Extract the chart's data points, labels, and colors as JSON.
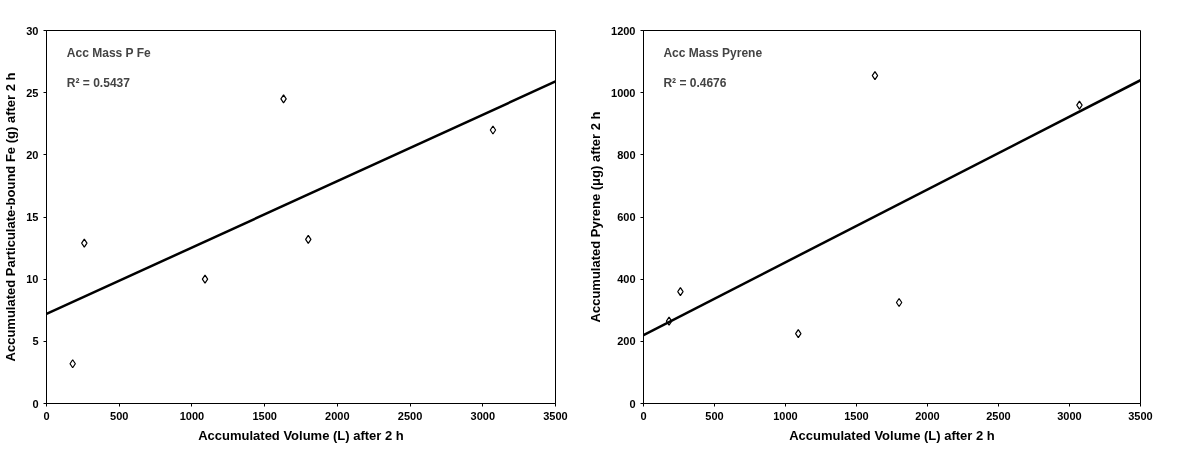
{
  "chart_data": [
    {
      "type": "scatter",
      "xlabel": "Accumulated Volume (L) after 2 h",
      "ylabel": "Accumulated Particulate-bound Fe (g) after 2 h",
      "annotations": [
        "Acc Mass P Fe",
        "R² = 0.5437"
      ],
      "xlim": [
        0,
        3500
      ],
      "xticks": [
        0,
        500,
        1000,
        1500,
        2000,
        2500,
        3000,
        3500
      ],
      "ylim": [
        0,
        30
      ],
      "yticks": [
        0,
        5,
        10,
        15,
        20,
        25,
        30
      ],
      "grid": false,
      "series": [
        {
          "marker": "diamond",
          "color": "#000000",
          "x": [
            180,
            260,
            1090,
            1630,
            1800,
            3070
          ],
          "values": [
            3.2,
            12.9,
            10.0,
            24.5,
            13.2,
            22.0
          ]
        },
        {
          "type": "line",
          "color": "#000000",
          "x": [
            0,
            3500
          ],
          "values": [
            7.2,
            25.9
          ]
        }
      ]
    },
    {
      "type": "scatter",
      "xlabel": "Accumulated Volume (L) after 2 h",
      "ylabel": "Accumulated Pyrene (μg) after 2 h",
      "annotations": [
        "Acc Mass Pyrene",
        "R² = 0.4676"
      ],
      "xlim": [
        0,
        3500
      ],
      "xticks": [
        0,
        500,
        1000,
        1500,
        2000,
        2500,
        3000,
        3500
      ],
      "ylim": [
        0,
        1200
      ],
      "yticks": [
        0,
        200,
        400,
        600,
        800,
        1000,
        1200
      ],
      "grid": false,
      "series": [
        {
          "marker": "diamond",
          "color": "#000000",
          "x": [
            180,
            260,
            1090,
            1630,
            1800,
            3070
          ],
          "values": [
            265,
            360,
            225,
            1055,
            325,
            960
          ]
        },
        {
          "type": "line",
          "color": "#000000",
          "x": [
            0,
            3500
          ],
          "values": [
            220,
            1040
          ]
        }
      ]
    }
  ]
}
